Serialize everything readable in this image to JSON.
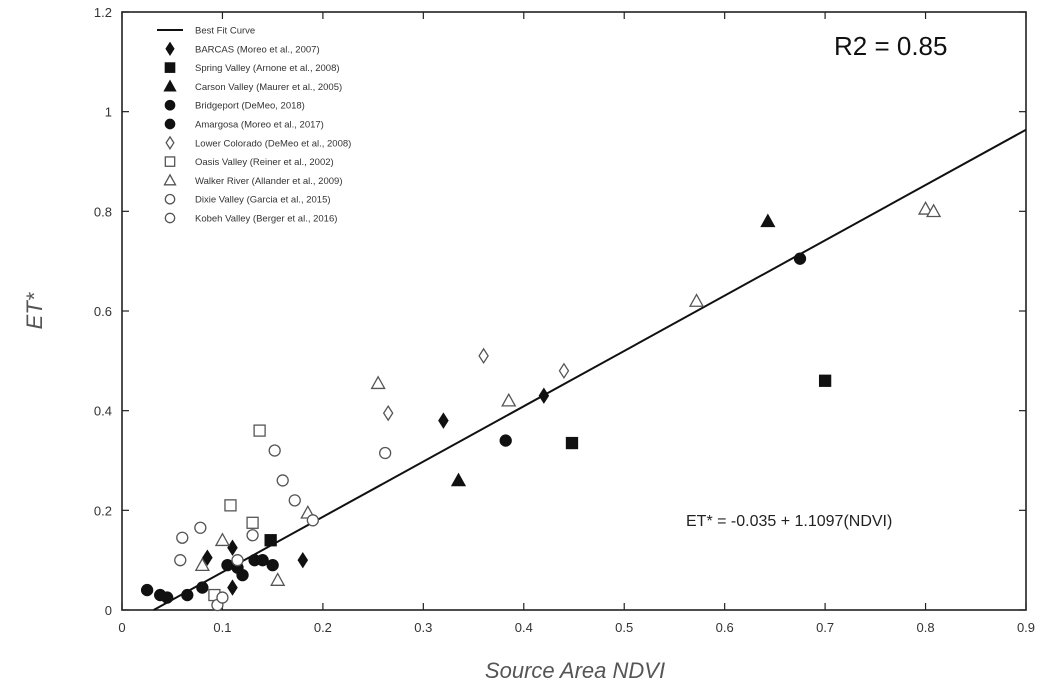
{
  "chart_data": {
    "type": "scatter",
    "xlabel": "Source Area NDVI",
    "ylabel": "ET*",
    "xlim": [
      0,
      0.9
    ],
    "ylim": [
      0,
      1.2
    ],
    "x_ticks": [
      0,
      0.1,
      0.2,
      0.3,
      0.4,
      0.5,
      0.6,
      0.7,
      0.8,
      0.9
    ],
    "x_tick_labels": [
      "0",
      "0.1",
      "0.2",
      "0.3",
      "0.4",
      "0.5",
      "0.6",
      "0.7",
      "0.8",
      "0.9"
    ],
    "y_ticks": [
      0,
      0.2,
      0.4,
      0.6,
      0.8,
      1,
      1.2
    ],
    "y_tick_labels": [
      "0",
      "0.2",
      "0.4",
      "0.6",
      "0.8",
      "1",
      "1.2"
    ],
    "grid": false,
    "legend_position": "top-left",
    "annotations": {
      "r2": "R2 = 0.85",
      "equation": "ET* = -0.035 + 1.1097(NDVI)"
    },
    "fit_line": {
      "name": "Best Fit Curve",
      "intercept": -0.035,
      "slope": 1.1097,
      "x_range": [
        0.0315,
        0.9
      ]
    },
    "series": [
      {
        "name": "BARCAS (Moreo et al., 2007)",
        "marker": "diamond-filled",
        "points": [
          [
            0.085,
            0.105
          ],
          [
            0.11,
            0.125
          ],
          [
            0.11,
            0.045
          ],
          [
            0.18,
            0.1
          ],
          [
            0.32,
            0.38
          ],
          [
            0.42,
            0.43
          ]
        ]
      },
      {
        "name": "Spring Valley (Arnone et al., 2008)",
        "marker": "square-filled",
        "points": [
          [
            0.148,
            0.14
          ],
          [
            0.448,
            0.335
          ],
          [
            0.7,
            0.46
          ]
        ]
      },
      {
        "name": "Carson Valley (Maurer et al., 2005)",
        "marker": "triangle-filled",
        "points": [
          [
            0.335,
            0.26
          ],
          [
            0.643,
            0.78
          ]
        ]
      },
      {
        "name": "Bridgeport (DeMeo, 2018)",
        "marker": "circle-filled",
        "points": [
          [
            0.025,
            0.04
          ],
          [
            0.038,
            0.03
          ],
          [
            0.045,
            0.025
          ],
          [
            0.065,
            0.03
          ],
          [
            0.08,
            0.045
          ],
          [
            0.105,
            0.09
          ],
          [
            0.115,
            0.085
          ],
          [
            0.12,
            0.07
          ],
          [
            0.132,
            0.1
          ],
          [
            0.14,
            0.1
          ],
          [
            0.15,
            0.09
          ]
        ]
      },
      {
        "name": "Amargosa (Moreo et al., 2017)",
        "marker": "circle-filled",
        "points": [
          [
            0.382,
            0.34
          ],
          [
            0.675,
            0.705
          ]
        ]
      },
      {
        "name": "Lower Colorado (DeMeo et al., 2008)",
        "marker": "diamond-open",
        "points": [
          [
            0.265,
            0.395
          ],
          [
            0.36,
            0.51
          ],
          [
            0.44,
            0.48
          ]
        ]
      },
      {
        "name": "Oasis Valley (Reiner et al., 2002)",
        "marker": "square-open",
        "points": [
          [
            0.092,
            0.03
          ],
          [
            0.108,
            0.21
          ],
          [
            0.13,
            0.175
          ],
          [
            0.137,
            0.36
          ]
        ]
      },
      {
        "name": "Walker River (Allander et al., 2009)",
        "marker": "triangle-open",
        "points": [
          [
            0.08,
            0.09
          ],
          [
            0.1,
            0.14
          ],
          [
            0.155,
            0.06
          ],
          [
            0.185,
            0.195
          ],
          [
            0.255,
            0.455
          ],
          [
            0.385,
            0.42
          ],
          [
            0.572,
            0.62
          ],
          [
            0.8,
            0.805
          ],
          [
            0.808,
            0.8
          ]
        ]
      },
      {
        "name": "Dixie Valley (Garcia et al., 2015)",
        "marker": "circle-open",
        "points": [
          [
            0.06,
            0.145
          ],
          [
            0.058,
            0.1
          ],
          [
            0.078,
            0.165
          ],
          [
            0.095,
            0.01
          ],
          [
            0.1,
            0.025
          ],
          [
            0.115,
            0.1
          ],
          [
            0.13,
            0.15
          ]
        ]
      },
      {
        "name": "Kobeh Valley (Berger et al., 2016)",
        "marker": "circle-open",
        "points": [
          [
            0.152,
            0.32
          ],
          [
            0.16,
            0.26
          ],
          [
            0.172,
            0.22
          ],
          [
            0.19,
            0.18
          ],
          [
            0.262,
            0.315
          ]
        ]
      }
    ]
  }
}
